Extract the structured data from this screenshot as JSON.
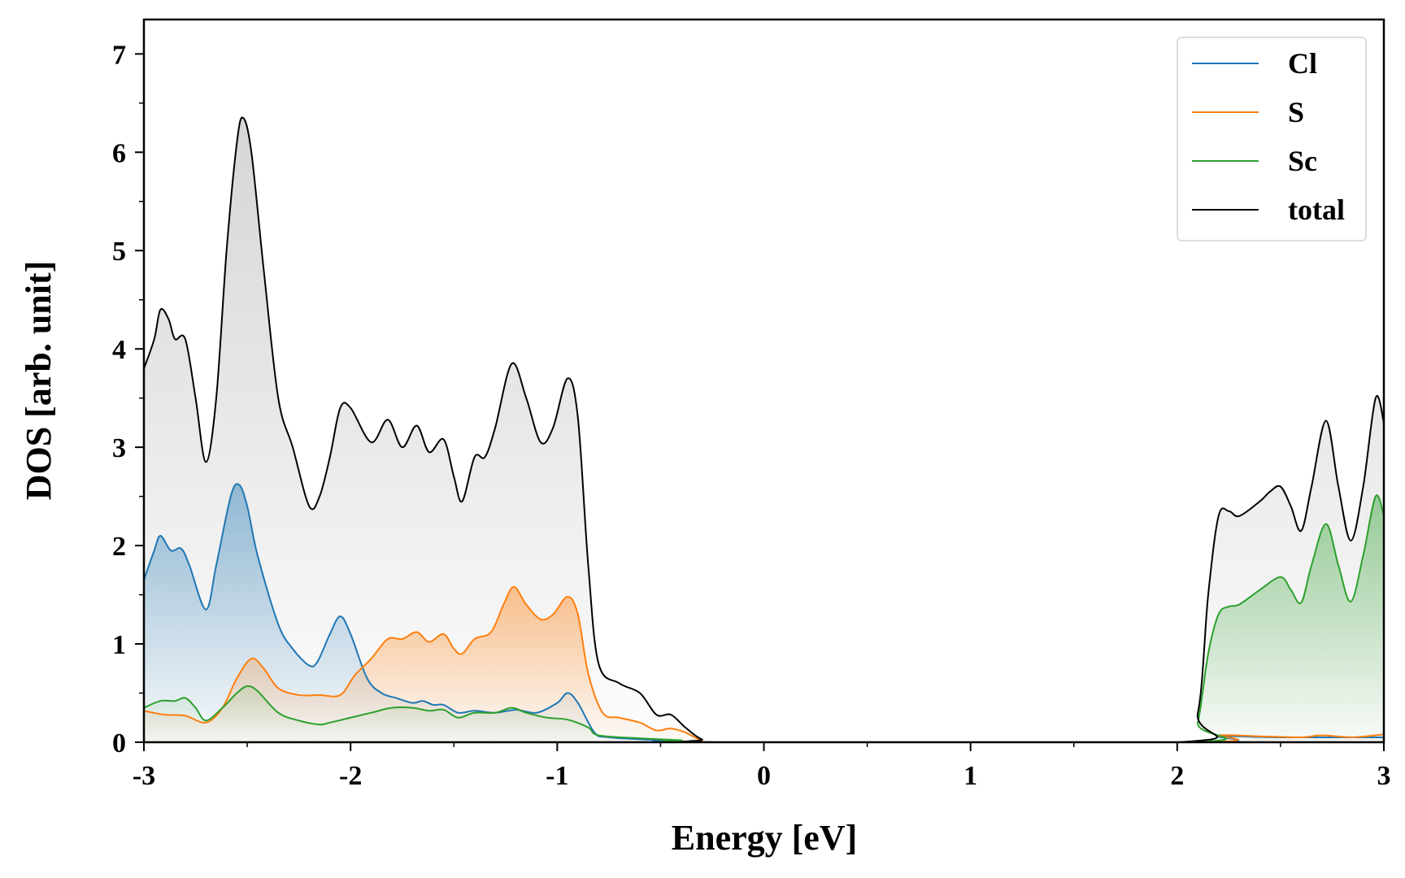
{
  "chart_data": {
    "type": "line",
    "title": "",
    "xlabel": "Energy [eV]",
    "ylabel": "DOS [arb. unit]",
    "xlim": [
      -3,
      3
    ],
    "ylim": [
      0,
      7.35
    ],
    "xticks": [
      -3,
      -2,
      -1,
      0,
      1,
      2,
      3
    ],
    "xtick_labels": [
      "-3",
      "-2",
      "-1",
      "0",
      "1",
      "2",
      "3"
    ],
    "yticks": [
      0,
      1,
      2,
      3,
      4,
      5,
      6,
      7
    ],
    "ytick_labels": [
      "0",
      "1",
      "2",
      "3",
      "4",
      "5",
      "6",
      "7"
    ],
    "grid": false,
    "legend_position": "top-right",
    "filled": true,
    "series": [
      {
        "name": "Cl",
        "color": "#1f77b4",
        "points": [
          [
            -3,
            1.65
          ],
          [
            -2.95,
            1.95
          ],
          [
            -2.92,
            2.1
          ],
          [
            -2.87,
            1.95
          ],
          [
            -2.82,
            1.97
          ],
          [
            -2.78,
            1.8
          ],
          [
            -2.7,
            1.35
          ],
          [
            -2.65,
            1.8
          ],
          [
            -2.58,
            2.5
          ],
          [
            -2.54,
            2.62
          ],
          [
            -2.5,
            2.4
          ],
          [
            -2.45,
            1.9
          ],
          [
            -2.35,
            1.2
          ],
          [
            -2.28,
            0.95
          ],
          [
            -2.2,
            0.78
          ],
          [
            -2.16,
            0.82
          ],
          [
            -2.1,
            1.1
          ],
          [
            -2.05,
            1.28
          ],
          [
            -2.0,
            1.1
          ],
          [
            -1.92,
            0.65
          ],
          [
            -1.85,
            0.5
          ],
          [
            -1.78,
            0.45
          ],
          [
            -1.7,
            0.4
          ],
          [
            -1.65,
            0.42
          ],
          [
            -1.6,
            0.38
          ],
          [
            -1.55,
            0.38
          ],
          [
            -1.48,
            0.3
          ],
          [
            -1.4,
            0.32
          ],
          [
            -1.3,
            0.3
          ],
          [
            -1.2,
            0.33
          ],
          [
            -1.1,
            0.3
          ],
          [
            -1.0,
            0.4
          ],
          [
            -0.95,
            0.5
          ],
          [
            -0.9,
            0.4
          ],
          [
            -0.82,
            0.1
          ],
          [
            -0.75,
            0.05
          ],
          [
            -0.5,
            0.02
          ],
          [
            -0.3,
            0
          ],
          [
            2.1,
            0
          ],
          [
            2.2,
            0.06
          ],
          [
            2.5,
            0.05
          ],
          [
            3,
            0.05
          ]
        ]
      },
      {
        "name": "S",
        "color": "#ff7f0e",
        "points": [
          [
            -3,
            0.32
          ],
          [
            -2.9,
            0.28
          ],
          [
            -2.8,
            0.27
          ],
          [
            -2.7,
            0.2
          ],
          [
            -2.62,
            0.35
          ],
          [
            -2.55,
            0.65
          ],
          [
            -2.48,
            0.85
          ],
          [
            -2.42,
            0.75
          ],
          [
            -2.35,
            0.55
          ],
          [
            -2.25,
            0.48
          ],
          [
            -2.15,
            0.48
          ],
          [
            -2.05,
            0.48
          ],
          [
            -1.98,
            0.68
          ],
          [
            -1.9,
            0.85
          ],
          [
            -1.82,
            1.05
          ],
          [
            -1.75,
            1.05
          ],
          [
            -1.68,
            1.12
          ],
          [
            -1.62,
            1.02
          ],
          [
            -1.55,
            1.1
          ],
          [
            -1.5,
            0.95
          ],
          [
            -1.46,
            0.9
          ],
          [
            -1.4,
            1.05
          ],
          [
            -1.32,
            1.12
          ],
          [
            -1.26,
            1.4
          ],
          [
            -1.21,
            1.58
          ],
          [
            -1.15,
            1.4
          ],
          [
            -1.08,
            1.25
          ],
          [
            -1.02,
            1.3
          ],
          [
            -0.95,
            1.48
          ],
          [
            -0.9,
            1.3
          ],
          [
            -0.85,
            0.7
          ],
          [
            -0.78,
            0.3
          ],
          [
            -0.7,
            0.25
          ],
          [
            -0.6,
            0.2
          ],
          [
            -0.52,
            0.12
          ],
          [
            -0.45,
            0.14
          ],
          [
            -0.38,
            0.1
          ],
          [
            -0.3,
            0.02
          ],
          [
            -0.2,
            0
          ],
          [
            2.1,
            0
          ],
          [
            2.2,
            0.07
          ],
          [
            2.4,
            0.06
          ],
          [
            2.6,
            0.05
          ],
          [
            2.7,
            0.07
          ],
          [
            2.85,
            0.05
          ],
          [
            3,
            0.08
          ]
        ]
      },
      {
        "name": "Sc",
        "color": "#2ca02c",
        "points": [
          [
            -3,
            0.35
          ],
          [
            -2.92,
            0.42
          ],
          [
            -2.85,
            0.42
          ],
          [
            -2.8,
            0.45
          ],
          [
            -2.75,
            0.35
          ],
          [
            -2.7,
            0.22
          ],
          [
            -2.62,
            0.35
          ],
          [
            -2.55,
            0.5
          ],
          [
            -2.5,
            0.57
          ],
          [
            -2.45,
            0.52
          ],
          [
            -2.35,
            0.3
          ],
          [
            -2.25,
            0.22
          ],
          [
            -2.15,
            0.18
          ],
          [
            -2.1,
            0.2
          ],
          [
            -2.0,
            0.25
          ],
          [
            -1.9,
            0.3
          ],
          [
            -1.8,
            0.35
          ],
          [
            -1.7,
            0.35
          ],
          [
            -1.62,
            0.32
          ],
          [
            -1.55,
            0.33
          ],
          [
            -1.48,
            0.25
          ],
          [
            -1.4,
            0.3
          ],
          [
            -1.3,
            0.3
          ],
          [
            -1.22,
            0.35
          ],
          [
            -1.15,
            0.3
          ],
          [
            -1.05,
            0.25
          ],
          [
            -0.95,
            0.23
          ],
          [
            -0.85,
            0.15
          ],
          [
            -0.8,
            0.07
          ],
          [
            -0.6,
            0.04
          ],
          [
            -0.4,
            0.02
          ],
          [
            -0.3,
            0
          ],
          [
            2.05,
            0
          ],
          [
            2.1,
            0.2
          ],
          [
            2.15,
            0.9
          ],
          [
            2.2,
            1.3
          ],
          [
            2.25,
            1.38
          ],
          [
            2.3,
            1.4
          ],
          [
            2.4,
            1.55
          ],
          [
            2.5,
            1.68
          ],
          [
            2.55,
            1.55
          ],
          [
            2.6,
            1.42
          ],
          [
            2.65,
            1.8
          ],
          [
            2.72,
            2.22
          ],
          [
            2.78,
            1.8
          ],
          [
            2.84,
            1.43
          ],
          [
            2.9,
            1.9
          ],
          [
            2.96,
            2.5
          ],
          [
            3.0,
            2.3
          ]
        ]
      },
      {
        "name": "total",
        "color": "#000000",
        "points": [
          [
            -3,
            3.8
          ],
          [
            -2.95,
            4.1
          ],
          [
            -2.92,
            4.4
          ],
          [
            -2.88,
            4.3
          ],
          [
            -2.85,
            4.1
          ],
          [
            -2.8,
            4.1
          ],
          [
            -2.75,
            3.5
          ],
          [
            -2.7,
            2.85
          ],
          [
            -2.65,
            3.5
          ],
          [
            -2.6,
            5.0
          ],
          [
            -2.55,
            6.1
          ],
          [
            -2.52,
            6.35
          ],
          [
            -2.48,
            6.0
          ],
          [
            -2.42,
            4.8
          ],
          [
            -2.35,
            3.5
          ],
          [
            -2.28,
            3.0
          ],
          [
            -2.2,
            2.4
          ],
          [
            -2.15,
            2.5
          ],
          [
            -2.1,
            2.9
          ],
          [
            -2.05,
            3.4
          ],
          [
            -2.0,
            3.4
          ],
          [
            -1.9,
            3.05
          ],
          [
            -1.82,
            3.28
          ],
          [
            -1.75,
            3.0
          ],
          [
            -1.68,
            3.22
          ],
          [
            -1.62,
            2.95
          ],
          [
            -1.55,
            3.08
          ],
          [
            -1.5,
            2.7
          ],
          [
            -1.46,
            2.45
          ],
          [
            -1.4,
            2.9
          ],
          [
            -1.35,
            2.9
          ],
          [
            -1.3,
            3.2
          ],
          [
            -1.22,
            3.85
          ],
          [
            -1.15,
            3.5
          ],
          [
            -1.08,
            3.05
          ],
          [
            -1.02,
            3.2
          ],
          [
            -0.95,
            3.7
          ],
          [
            -0.9,
            3.3
          ],
          [
            -0.85,
            1.8
          ],
          [
            -0.8,
            0.8
          ],
          [
            -0.7,
            0.6
          ],
          [
            -0.6,
            0.5
          ],
          [
            -0.52,
            0.28
          ],
          [
            -0.45,
            0.28
          ],
          [
            -0.38,
            0.15
          ],
          [
            -0.3,
            0.03
          ],
          [
            -0.2,
            0
          ],
          [
            2.0,
            0
          ],
          [
            2.1,
            0.3
          ],
          [
            2.15,
            1.5
          ],
          [
            2.2,
            2.3
          ],
          [
            2.25,
            2.35
          ],
          [
            2.3,
            2.3
          ],
          [
            2.4,
            2.45
          ],
          [
            2.45,
            2.55
          ],
          [
            2.5,
            2.6
          ],
          [
            2.55,
            2.4
          ],
          [
            2.6,
            2.15
          ],
          [
            2.65,
            2.6
          ],
          [
            2.72,
            3.27
          ],
          [
            2.78,
            2.6
          ],
          [
            2.84,
            2.05
          ],
          [
            2.9,
            2.6
          ],
          [
            2.96,
            3.5
          ],
          [
            3.0,
            3.25
          ]
        ]
      }
    ]
  }
}
